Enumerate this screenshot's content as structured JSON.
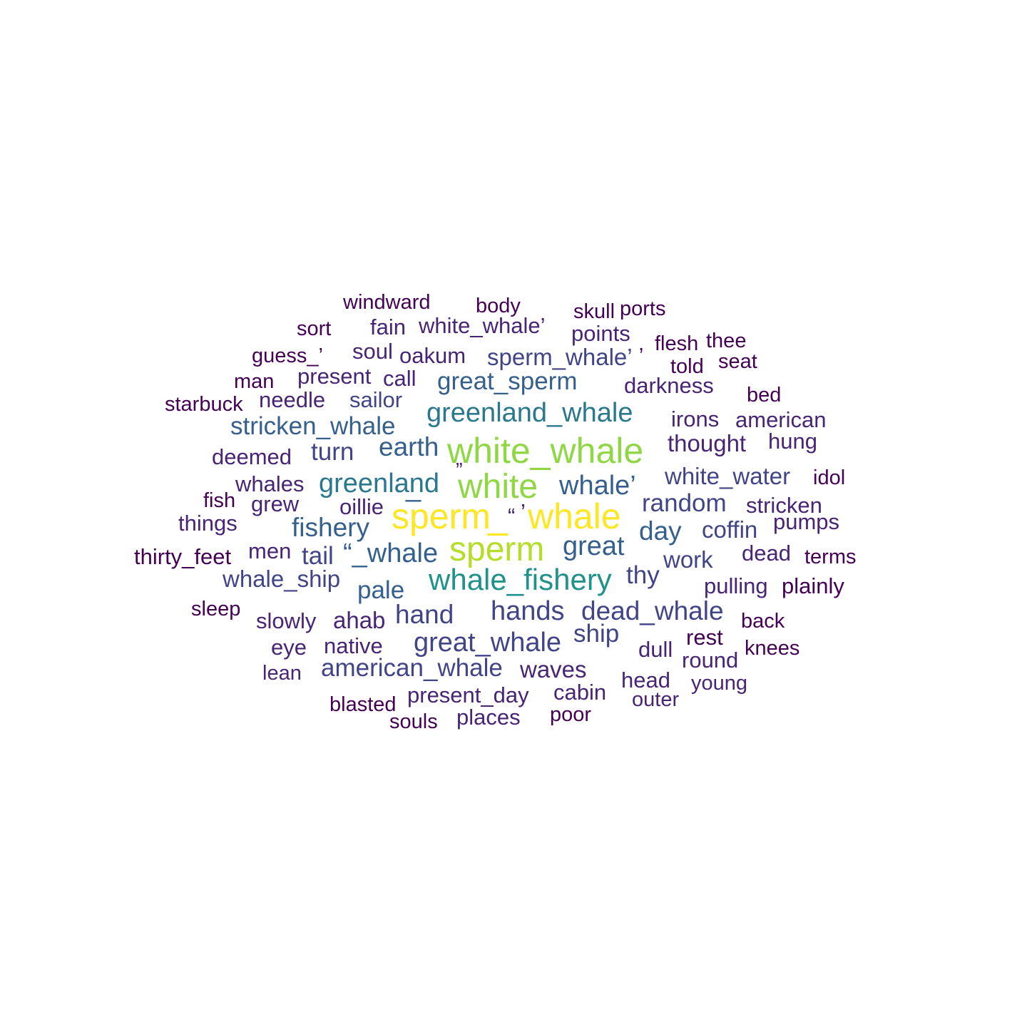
{
  "colors": {
    "c0": "#440154",
    "c1": "#482475",
    "c2": "#414487",
    "c3": "#355f8d",
    "c4": "#2a788e",
    "c5": "#21918c",
    "c6": "#b5de2b",
    "c7": "#8fd744",
    "c8": "#fde725"
  },
  "words": [
    {
      "text": "windward",
      "color": "c0"
    },
    {
      "text": "body",
      "color": "c0"
    },
    {
      "text": "skull",
      "color": "c0"
    },
    {
      "text": "ports",
      "color": "c0"
    },
    {
      "text": "sort",
      "color": "c0"
    },
    {
      "text": "fain",
      "color": "c1"
    },
    {
      "text": "white_whale’",
      "color": "c1"
    },
    {
      "text": "points",
      "color": "c1"
    },
    {
      "text": ",",
      "color": "c0"
    },
    {
      "text": "flesh",
      "color": "c0"
    },
    {
      "text": "thee",
      "color": "c0"
    },
    {
      "text": "guess_’",
      "color": "c0"
    },
    {
      "text": "soul",
      "color": "c1"
    },
    {
      "text": "oakum",
      "color": "c1"
    },
    {
      "text": "sperm_whale’",
      "color": "c2"
    },
    {
      "text": "told",
      "color": "c0"
    },
    {
      "text": "seat",
      "color": "c0"
    },
    {
      "text": "man",
      "color": "c0"
    },
    {
      "text": "present",
      "color": "c1"
    },
    {
      "text": "call",
      "color": "c1"
    },
    {
      "text": "great_sperm",
      "color": "c3"
    },
    {
      "text": "darkness",
      "color": "c1"
    },
    {
      "text": "bed",
      "color": "c0"
    },
    {
      "text": "starbuck",
      "color": "c0"
    },
    {
      "text": "needle",
      "color": "c1"
    },
    {
      "text": "sailor",
      "color": "c2"
    },
    {
      "text": "greenland_whale",
      "color": "c4"
    },
    {
      "text": "irons",
      "color": "c1"
    },
    {
      "text": "american",
      "color": "c1"
    },
    {
      "text": "stricken_whale",
      "color": "c3"
    },
    {
      "text": "hung",
      "color": "c1"
    },
    {
      "text": "thought",
      "color": "c1"
    },
    {
      "text": "deemed",
      "color": "c1"
    },
    {
      "text": "turn",
      "color": "c2"
    },
    {
      "text": "earth",
      "color": "c3"
    },
    {
      "text": "white_whale",
      "color": "c7"
    },
    {
      "text": "whales",
      "color": "c1"
    },
    {
      "text": "greenland",
      "color": "c4"
    },
    {
      "text": "”",
      "color": "c1"
    },
    {
      "text": "white",
      "color": "c7"
    },
    {
      "text": "whale’",
      "color": "c3"
    },
    {
      "text": "white_water",
      "color": "c2"
    },
    {
      "text": "idol",
      "color": "c0"
    },
    {
      "text": "fish",
      "color": "c0"
    },
    {
      "text": "grew",
      "color": "c1"
    },
    {
      "text": "oillie",
      "color": "c1"
    },
    {
      "text": "_",
      "color": "c3"
    },
    {
      "text": "random",
      "color": "c2"
    },
    {
      "text": "stricken",
      "color": "c1"
    },
    {
      "text": "things",
      "color": "c1"
    },
    {
      "text": "sperm",
      "color": "c8"
    },
    {
      "text": "“",
      "color": "c1"
    },
    {
      "text": "_",
      "color": "c8"
    },
    {
      "text": "’",
      "color": "c1"
    },
    {
      "text": "whale",
      "color": "c8"
    },
    {
      "text": "pumps",
      "color": "c1"
    },
    {
      "text": "fishery",
      "color": "c3"
    },
    {
      "text": "day",
      "color": "c3"
    },
    {
      "text": "coffin",
      "color": "c2"
    },
    {
      "text": "thirty_feet",
      "color": "c0"
    },
    {
      "text": "men",
      "color": "c1"
    },
    {
      "text": "tail",
      "color": "c2"
    },
    {
      "text": "“_whale",
      "color": "c3"
    },
    {
      "text": "sperm",
      "color": "c6"
    },
    {
      "text": "great",
      "color": "c3"
    },
    {
      "text": "dead",
      "color": "c1"
    },
    {
      "text": "terms",
      "color": "c0"
    },
    {
      "text": "work",
      "color": "c2"
    },
    {
      "text": "whale_ship",
      "color": "c2"
    },
    {
      "text": "pale",
      "color": "c3"
    },
    {
      "text": "whale_fishery",
      "color": "c5"
    },
    {
      "text": "thy",
      "color": "c2"
    },
    {
      "text": "pulling",
      "color": "c1"
    },
    {
      "text": "plainly",
      "color": "c0"
    },
    {
      "text": "sleep",
      "color": "c0"
    },
    {
      "text": "slowly",
      "color": "c1"
    },
    {
      "text": "ahab",
      "color": "c1"
    },
    {
      "text": "hand",
      "color": "c2"
    },
    {
      "text": "hands",
      "color": "c2"
    },
    {
      "text": "dead_whale",
      "color": "c2"
    },
    {
      "text": "back",
      "color": "c0"
    },
    {
      "text": "eye",
      "color": "c1"
    },
    {
      "text": "native",
      "color": "c1"
    },
    {
      "text": "great_whale",
      "color": "c2"
    },
    {
      "text": "ship",
      "color": "c2"
    },
    {
      "text": "dull",
      "color": "c1"
    },
    {
      "text": "rest",
      "color": "c0"
    },
    {
      "text": "knees",
      "color": "c0"
    },
    {
      "text": "lean",
      "color": "c1"
    },
    {
      "text": "american_whale",
      "color": "c2"
    },
    {
      "text": "waves",
      "color": "c1"
    },
    {
      "text": "round",
      "color": "c1"
    },
    {
      "text": "head",
      "color": "c1"
    },
    {
      "text": "young",
      "color": "c1"
    },
    {
      "text": "blasted",
      "color": "c0"
    },
    {
      "text": "present_day",
      "color": "c1"
    },
    {
      "text": "cabin",
      "color": "c1"
    },
    {
      "text": "outer",
      "color": "c1"
    },
    {
      "text": "souls",
      "color": "c0"
    },
    {
      "text": "places",
      "color": "c1"
    },
    {
      "text": "poor",
      "color": "c0"
    }
  ]
}
